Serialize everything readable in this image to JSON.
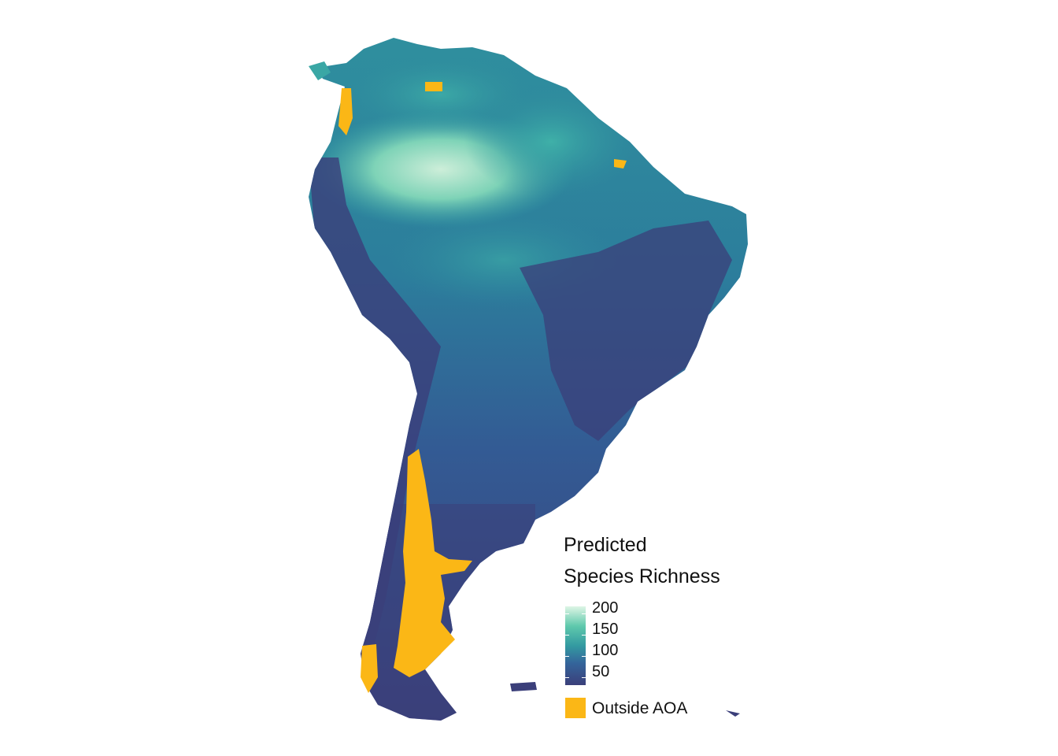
{
  "map": {
    "region": "South America",
    "fill_colors": {
      "low": "#3b3f7a",
      "mid": "#339aa1",
      "high": "#def5e5",
      "outside_aoa": "#fbb716"
    }
  },
  "legend": {
    "title_line1": "Predicted",
    "title_line2": "Species Richness",
    "ticks": [
      "200",
      "150",
      "100",
      "50"
    ],
    "outside_label": "Outside AOA"
  }
}
